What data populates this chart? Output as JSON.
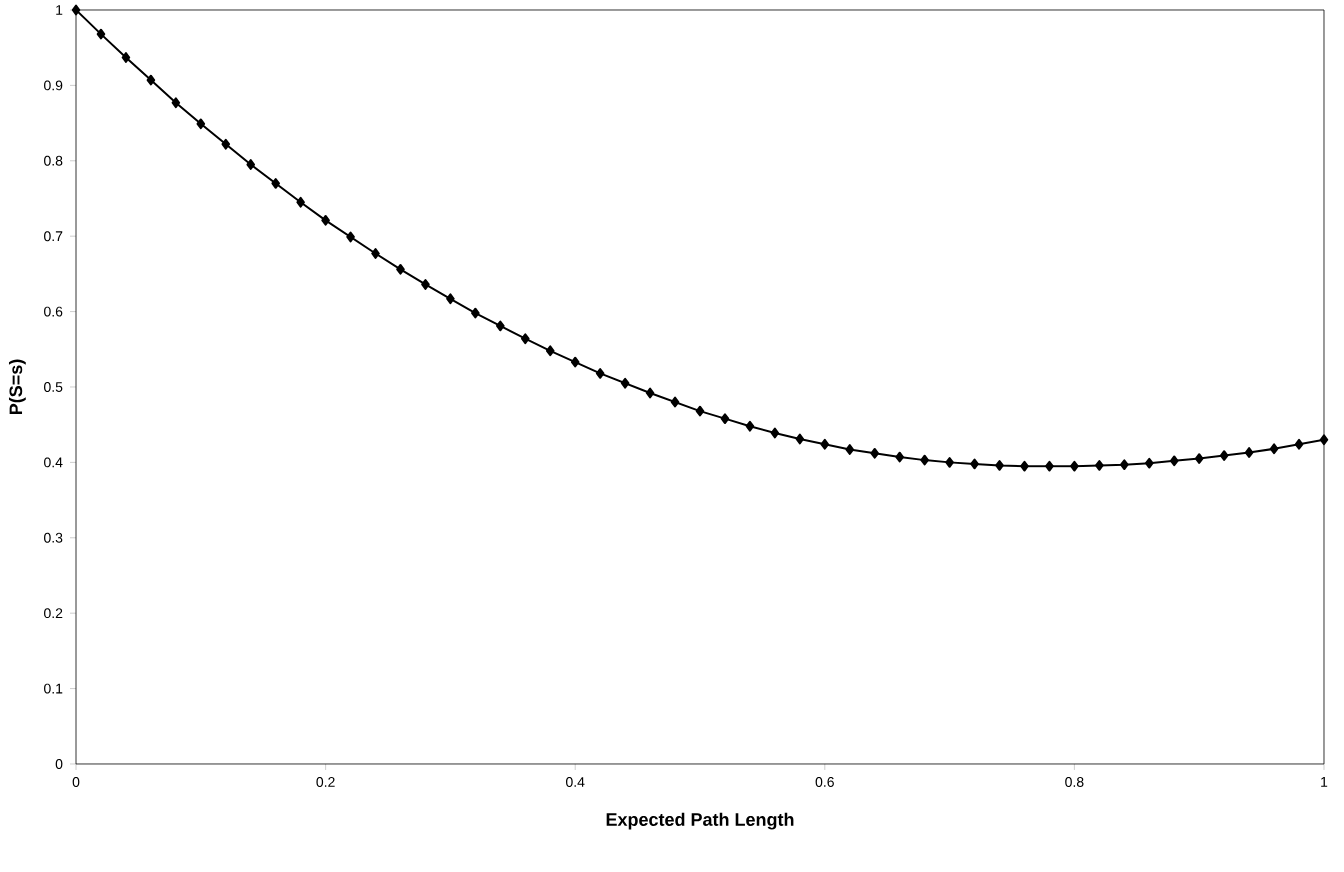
{
  "chart_data": {
    "type": "line",
    "xlabel": "Expected Path Length",
    "ylabel": "P(S=s)",
    "x": [
      0,
      0.02,
      0.04,
      0.06,
      0.08,
      0.1,
      0.12,
      0.14,
      0.16,
      0.18,
      0.2,
      0.22,
      0.24,
      0.26,
      0.28,
      0.3,
      0.32,
      0.34,
      0.36,
      0.38,
      0.4,
      0.42,
      0.44,
      0.46,
      0.48,
      0.5,
      0.52,
      0.54,
      0.56,
      0.58,
      0.6,
      0.62,
      0.64,
      0.66,
      0.68,
      0.7,
      0.72,
      0.74,
      0.76,
      0.78,
      0.8,
      0.82,
      0.84,
      0.86,
      0.88,
      0.9,
      0.92,
      0.94,
      0.96,
      0.98,
      1
    ],
    "series": [
      {
        "color": "#000000",
        "values": [
          1.0,
          0.968,
          0.937,
          0.907,
          0.877,
          0.849,
          0.822,
          0.795,
          0.77,
          0.745,
          0.721,
          0.699,
          0.677,
          0.656,
          0.636,
          0.617,
          0.598,
          0.581,
          0.564,
          0.548,
          0.533,
          0.518,
          0.505,
          0.492,
          0.48,
          0.468,
          0.458,
          0.448,
          0.439,
          0.431,
          0.424,
          0.417,
          0.412,
          0.407,
          0.403,
          0.4,
          0.398,
          0.396,
          0.395,
          0.395,
          0.395,
          0.396,
          0.397,
          0.399,
          0.402,
          0.405,
          0.409,
          0.413,
          0.418,
          0.424,
          0.43
        ]
      }
    ],
    "xlim": [
      0,
      1
    ],
    "ylim": [
      0,
      1
    ],
    "xticks": [
      0,
      0.2,
      0.4,
      0.6,
      0.8,
      1
    ],
    "yticks": [
      0,
      0.1,
      0.2,
      0.3,
      0.4,
      0.5,
      0.6,
      0.7,
      0.8,
      0.9,
      1
    ],
    "grid": false,
    "marker": "diamond",
    "line_style": "solid"
  }
}
